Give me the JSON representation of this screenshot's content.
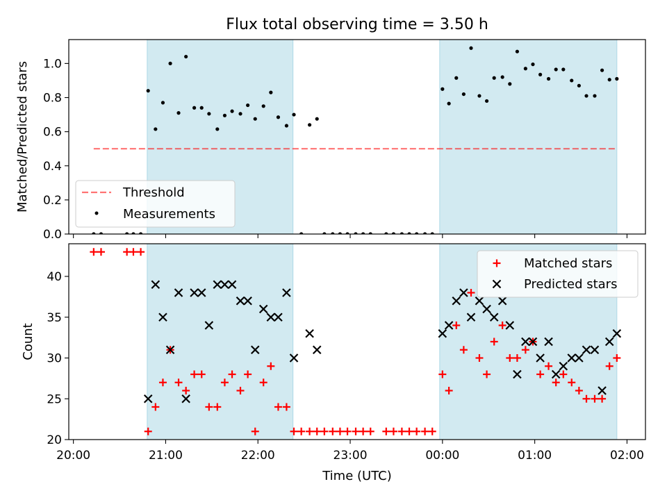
{
  "figure": {
    "title": "Flux total observing time = 3.50 h",
    "xlabel": "Time (UTC)",
    "x_tick_labels": [
      "20:00",
      "21:00",
      "22:00",
      "23:00",
      "00:00",
      "01:00",
      "02:00"
    ]
  },
  "colors": {
    "span": "#add8e6",
    "threshold": "#ff0000",
    "measurements": "#000000",
    "matched": "#ff0000",
    "predicted": "#000000"
  },
  "chart_data": [
    {
      "type": "scatter",
      "ylabel": "Matched/Predicted stars",
      "ylim": [
        0,
        1.14
      ],
      "xlim_hours": [
        19.95,
        26.2
      ],
      "y_ticks": [
        0.0,
        0.2,
        0.4,
        0.6,
        0.8,
        1.0
      ],
      "y_tick_labels": [
        "0.0",
        "0.2",
        "0.4",
        "0.6",
        "0.8",
        "1.0"
      ],
      "legend_position": "lower-left",
      "legend": [
        "Threshold",
        "Measurements"
      ],
      "shaded_spans_hours": [
        [
          20.8,
          22.38
        ],
        [
          23.97,
          25.89
        ]
      ],
      "threshold": {
        "name": "Threshold",
        "y": 0.5,
        "x_range_hours": [
          20.22,
          25.89
        ]
      },
      "series": [
        {
          "name": "Measurements",
          "points": [
            [
              20.22,
              0
            ],
            [
              20.3,
              0
            ],
            [
              20.58,
              0
            ],
            [
              20.65,
              0
            ],
            [
              20.73,
              0
            ],
            [
              20.81,
              0.84
            ],
            [
              20.89,
              0.615
            ],
            [
              20.97,
              0.77
            ],
            [
              21.05,
              1.0
            ],
            [
              21.14,
              0.71
            ],
            [
              21.22,
              1.04
            ],
            [
              21.31,
              0.74
            ],
            [
              21.39,
              0.74
            ],
            [
              21.47,
              0.705
            ],
            [
              21.56,
              0.615
            ],
            [
              21.64,
              0.695
            ],
            [
              21.72,
              0.72
            ],
            [
              21.81,
              0.705
            ],
            [
              21.89,
              0.755
            ],
            [
              21.97,
              0.675
            ],
            [
              22.06,
              0.75
            ],
            [
              22.14,
              0.83
            ],
            [
              22.22,
              0.685
            ],
            [
              22.31,
              0.635
            ],
            [
              22.39,
              0.7
            ],
            [
              22.47,
              0
            ],
            [
              22.56,
              0.64
            ],
            [
              22.64,
              0.675
            ],
            [
              22.72,
              0
            ],
            [
              22.81,
              0
            ],
            [
              22.89,
              0
            ],
            [
              22.97,
              0
            ],
            [
              23.06,
              0
            ],
            [
              23.14,
              0
            ],
            [
              23.22,
              0
            ],
            [
              23.39,
              0
            ],
            [
              23.47,
              0
            ],
            [
              23.56,
              0
            ],
            [
              23.64,
              0
            ],
            [
              23.72,
              0
            ],
            [
              23.81,
              0
            ],
            [
              23.89,
              0
            ],
            [
              24.0,
              0.85
            ],
            [
              24.07,
              0.765
            ],
            [
              24.15,
              0.915
            ],
            [
              24.23,
              0.82
            ],
            [
              24.31,
              1.09
            ],
            [
              24.4,
              0.81
            ],
            [
              24.48,
              0.78
            ],
            [
              24.56,
              0.915
            ],
            [
              24.65,
              0.92
            ],
            [
              24.73,
              0.88
            ],
            [
              24.81,
              1.07
            ],
            [
              24.9,
              0.97
            ],
            [
              24.98,
              0.995
            ],
            [
              25.06,
              0.935
            ],
            [
              25.15,
              0.91
            ],
            [
              25.23,
              0.965
            ],
            [
              25.31,
              0.965
            ],
            [
              25.4,
              0.9
            ],
            [
              25.48,
              0.87
            ],
            [
              25.56,
              0.81
            ],
            [
              25.65,
              0.81
            ],
            [
              25.73,
              0.96
            ],
            [
              25.81,
              0.905
            ],
            [
              25.89,
              0.91
            ]
          ]
        }
      ]
    },
    {
      "type": "scatter",
      "ylabel": "Count",
      "ylim": [
        20,
        44
      ],
      "xlim_hours": [
        19.95,
        26.2
      ],
      "y_ticks": [
        20,
        25,
        30,
        35,
        40
      ],
      "y_tick_labels": [
        "20",
        "25",
        "30",
        "35",
        "40"
      ],
      "legend_position": "top-right",
      "legend": [
        "Matched stars",
        "Predicted stars"
      ],
      "shaded_spans_hours": [
        [
          20.8,
          22.38
        ],
        [
          23.97,
          25.89
        ]
      ],
      "series": [
        {
          "name": "Matched stars",
          "marker": "plus",
          "points": [
            [
              20.22,
              43
            ],
            [
              20.3,
              43
            ],
            [
              20.58,
              43
            ],
            [
              20.65,
              43
            ],
            [
              20.73,
              43
            ],
            [
              20.81,
              21
            ],
            [
              20.89,
              24
            ],
            [
              20.97,
              27
            ],
            [
              21.05,
              31
            ],
            [
              21.14,
              27
            ],
            [
              21.22,
              26
            ],
            [
              21.31,
              28
            ],
            [
              21.39,
              28
            ],
            [
              21.47,
              24
            ],
            [
              21.56,
              24
            ],
            [
              21.64,
              27
            ],
            [
              21.72,
              28
            ],
            [
              21.81,
              26
            ],
            [
              21.89,
              28
            ],
            [
              21.97,
              21
            ],
            [
              22.06,
              27
            ],
            [
              22.14,
              29
            ],
            [
              22.22,
              24
            ],
            [
              22.31,
              24
            ],
            [
              22.39,
              21
            ],
            [
              22.47,
              21
            ],
            [
              22.56,
              21
            ],
            [
              22.64,
              21
            ],
            [
              22.72,
              21
            ],
            [
              22.81,
              21
            ],
            [
              22.89,
              21
            ],
            [
              22.97,
              21
            ],
            [
              23.06,
              21
            ],
            [
              23.14,
              21
            ],
            [
              23.22,
              21
            ],
            [
              23.39,
              21
            ],
            [
              23.47,
              21
            ],
            [
              23.56,
              21
            ],
            [
              23.64,
              21
            ],
            [
              23.72,
              21
            ],
            [
              23.81,
              21
            ],
            [
              23.89,
              21
            ],
            [
              24.0,
              28
            ],
            [
              24.07,
              26
            ],
            [
              24.15,
              34
            ],
            [
              24.23,
              31
            ],
            [
              24.31,
              38
            ],
            [
              24.4,
              30
            ],
            [
              24.48,
              28
            ],
            [
              24.56,
              32
            ],
            [
              24.65,
              34
            ],
            [
              24.73,
              30
            ],
            [
              24.81,
              30
            ],
            [
              24.9,
              31
            ],
            [
              24.98,
              32
            ],
            [
              25.06,
              28
            ],
            [
              25.15,
              29
            ],
            [
              25.23,
              27
            ],
            [
              25.31,
              28
            ],
            [
              25.4,
              27
            ],
            [
              25.48,
              26
            ],
            [
              25.56,
              25
            ],
            [
              25.65,
              25
            ],
            [
              25.73,
              25
            ],
            [
              25.81,
              29
            ],
            [
              25.89,
              30
            ]
          ]
        },
        {
          "name": "Predicted stars",
          "marker": "x",
          "points": [
            [
              20.81,
              25
            ],
            [
              20.89,
              39
            ],
            [
              20.97,
              35
            ],
            [
              21.05,
              31
            ],
            [
              21.14,
              38
            ],
            [
              21.22,
              25
            ],
            [
              21.31,
              38
            ],
            [
              21.39,
              38
            ],
            [
              21.47,
              34
            ],
            [
              21.56,
              39
            ],
            [
              21.64,
              39
            ],
            [
              21.72,
              39
            ],
            [
              21.81,
              37
            ],
            [
              21.89,
              37
            ],
            [
              21.97,
              31
            ],
            [
              22.06,
              36
            ],
            [
              22.14,
              35
            ],
            [
              22.22,
              35
            ],
            [
              22.31,
              38
            ],
            [
              22.39,
              30
            ],
            [
              22.56,
              33
            ],
            [
              22.64,
              31
            ],
            [
              24.0,
              33
            ],
            [
              24.07,
              34
            ],
            [
              24.15,
              37
            ],
            [
              24.23,
              38
            ],
            [
              24.31,
              35
            ],
            [
              24.4,
              37
            ],
            [
              24.48,
              36
            ],
            [
              24.56,
              35
            ],
            [
              24.65,
              37
            ],
            [
              24.73,
              34
            ],
            [
              24.81,
              28
            ],
            [
              24.9,
              32
            ],
            [
              24.98,
              32
            ],
            [
              25.06,
              30
            ],
            [
              25.15,
              32
            ],
            [
              25.23,
              28
            ],
            [
              25.31,
              29
            ],
            [
              25.4,
              30
            ],
            [
              25.48,
              30
            ],
            [
              25.56,
              31
            ],
            [
              25.65,
              31
            ],
            [
              25.73,
              26
            ],
            [
              25.81,
              32
            ],
            [
              25.89,
              33
            ]
          ]
        }
      ]
    }
  ]
}
